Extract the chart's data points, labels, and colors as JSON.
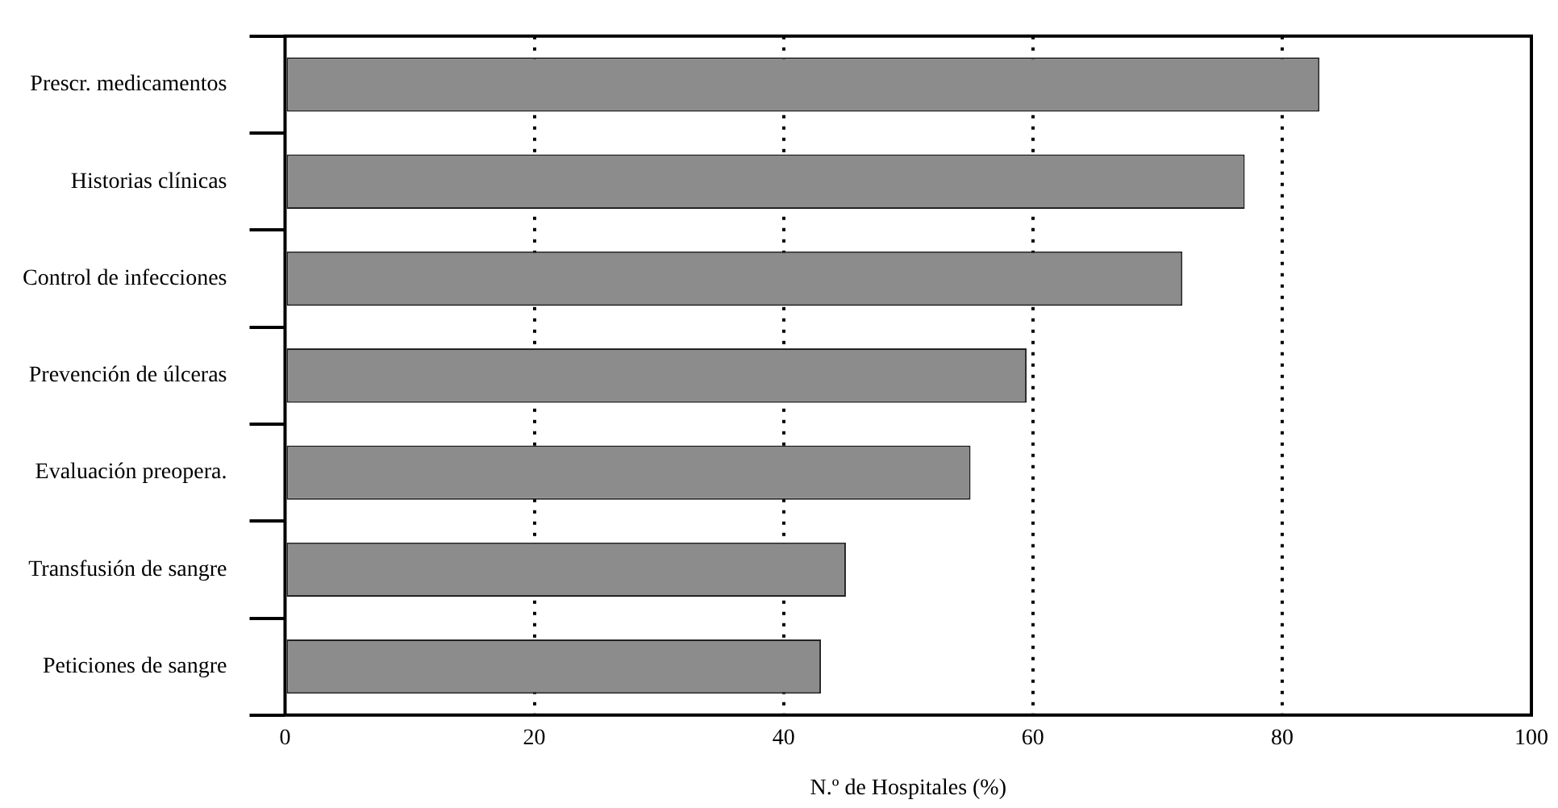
{
  "chart_data": {
    "type": "bar",
    "orientation": "horizontal",
    "xlabel": "N.º de Hospitales (%)",
    "categories": [
      "Prescr. medicamentos",
      "Historias clínicas",
      "Control de infecciones",
      "Prevención de úlceras",
      "Evaluación preopera.",
      "Transfusión de sangre",
      "Peticiones de sangre"
    ],
    "values": [
      83,
      77,
      72,
      59.5,
      55,
      45,
      43
    ],
    "color": "#8c8c8c",
    "xlim": [
      0,
      100
    ],
    "xticks": [
      0,
      20,
      40,
      60,
      80,
      100
    ],
    "grid": "x",
    "legend": false
  }
}
